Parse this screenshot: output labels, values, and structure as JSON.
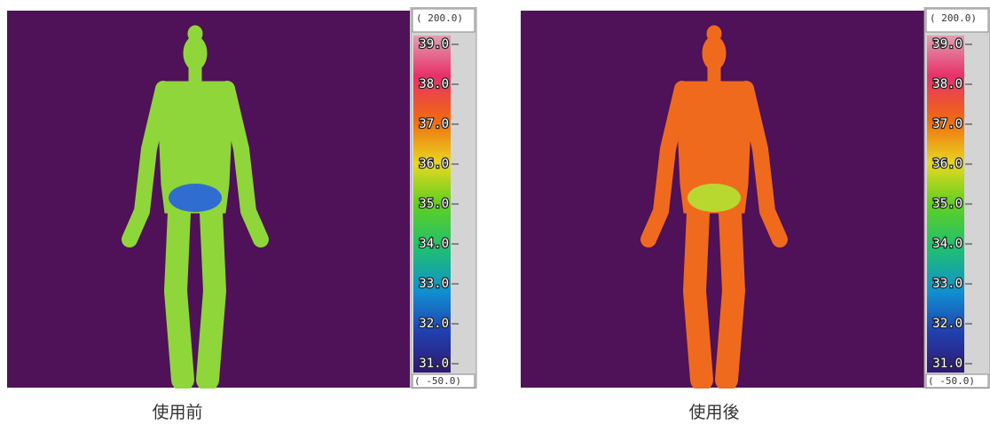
{
  "panels": [
    {
      "scale": {
        "max": "( 200.0)",
        "labels": [
          "39.0",
          "38.0",
          "37.0",
          "36.0",
          "35.0",
          "34.0",
          "33.0",
          "32.0",
          "31.0"
        ],
        "min": "( -50.0)"
      },
      "caption": "使用前"
    },
    {
      "scale": {
        "max": "( 200.0)",
        "labels": [
          "39.0",
          "38.0",
          "37.0",
          "36.0",
          "35.0",
          "34.0",
          "33.0",
          "32.0",
          "31.0"
        ],
        "min": "( -50.0)"
      },
      "caption": "使用後"
    }
  ]
}
